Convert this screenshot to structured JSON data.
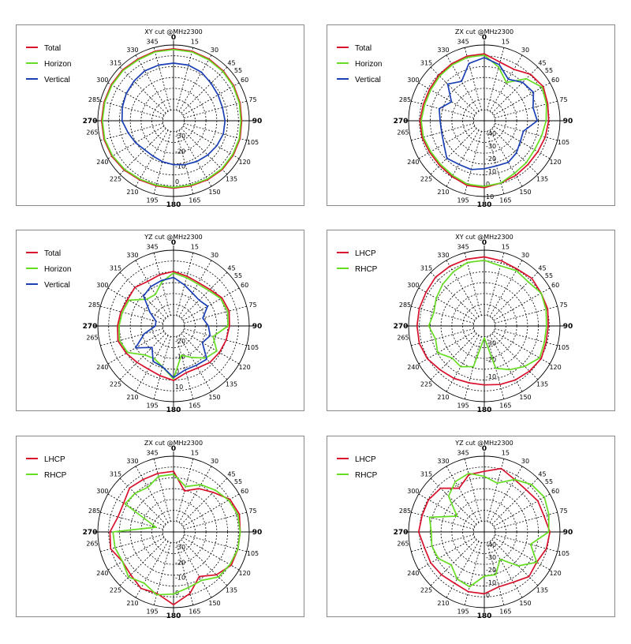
{
  "chart_data": [
    {
      "type": "polar",
      "title": "XY cut @MHz2300",
      "angles": [
        0,
        15,
        30,
        45,
        60,
        75,
        90,
        105,
        120,
        135,
        150,
        165,
        180,
        195,
        210,
        225,
        240,
        255,
        270,
        285,
        300,
        315,
        330,
        345
      ],
      "angle_ticks": [
        "0",
        "15",
        "30",
        "45",
        "55",
        "60",
        "75",
        "90",
        "105",
        "120",
        "135",
        "150",
        "165",
        "180",
        "195",
        "210",
        "225",
        "240",
        "265",
        "270",
        "285",
        "300",
        "315",
        "330",
        "345"
      ],
      "radial_ticks": [
        "-30",
        "-20",
        "-10",
        "0"
      ],
      "rmin": -40,
      "rmax": 10,
      "series": [
        {
          "name": "Total",
          "color": "#d8102b",
          "values": [
            7.5,
            7.5,
            7,
            6.5,
            6,
            5.5,
            5,
            5.5,
            5.5,
            5.5,
            5,
            4.5,
            4.5,
            4.5,
            5,
            6,
            7,
            7.5,
            7.5,
            7.5,
            7.5,
            7.5,
            7,
            7.5
          ]
        },
        {
          "name": "Horizon",
          "color": "#66dd22",
          "values": [
            7,
            7,
            6.5,
            6,
            5.5,
            5,
            4.5,
            5,
            5,
            5,
            4.5,
            4,
            4,
            4,
            4.5,
            5.5,
            6.5,
            7,
            7,
            7,
            7,
            7,
            6.5,
            7
          ]
        },
        {
          "name": "Vertical",
          "color": "#1a3fb5",
          "values": [
            -2,
            -2,
            -3,
            -5,
            -6,
            -6.5,
            -6,
            -6,
            -7,
            -8,
            -9,
            -10,
            -11,
            -12,
            -13,
            -13,
            -11,
            -9,
            -6,
            -5,
            -4,
            -3,
            -2,
            -2
          ]
        }
      ]
    },
    {
      "type": "polar",
      "title": "ZX cut @MHz2300",
      "angles": [
        0,
        15,
        30,
        45,
        60,
        75,
        90,
        105,
        120,
        135,
        150,
        165,
        180,
        195,
        210,
        225,
        240,
        255,
        270,
        285,
        300,
        315,
        330,
        345
      ],
      "angle_ticks": [
        "0",
        "15",
        "30",
        "45",
        "55",
        "60",
        "75",
        "90",
        "105",
        "120",
        "135",
        "150",
        "165",
        "180",
        "195",
        "210",
        "225",
        "240",
        "265",
        "270",
        "285",
        "300",
        "315",
        "330",
        "345"
      ],
      "radial_ticks": [
        "-40",
        "-30",
        "-20",
        "-10",
        "0",
        "10"
      ],
      "rmin": -50,
      "rmax": 10,
      "series": [
        {
          "name": "Total",
          "color": "#d8102b",
          "values": [
            3,
            -2,
            -3,
            2,
            4,
            2,
            1,
            0,
            -1,
            -1,
            0,
            1,
            3,
            3,
            1,
            0,
            0,
            1,
            1,
            0,
            0,
            1,
            2,
            3
          ]
        },
        {
          "name": "Horizon",
          "color": "#66dd22",
          "values": [
            2,
            -6,
            -15,
            -3,
            3,
            1,
            -1,
            -3,
            -4,
            -3,
            -2,
            1,
            2,
            2,
            0,
            -1,
            -1,
            0,
            0,
            -1,
            -1,
            0,
            1,
            2
          ]
        },
        {
          "name": "Vertical",
          "color": "#1a3fb5",
          "values": [
            0,
            -4,
            -12,
            -7,
            -5,
            -10,
            -8,
            -18,
            -17,
            -14,
            -12,
            -13,
            -12,
            -10,
            -10,
            -8,
            -13,
            -15,
            -15,
            -13,
            -20,
            -9,
            -14,
            -3
          ]
        }
      ]
    },
    {
      "type": "polar",
      "title": "YZ cut @MHz2300",
      "angles": [
        0,
        15,
        30,
        45,
        60,
        75,
        90,
        105,
        120,
        135,
        150,
        165,
        180,
        195,
        210,
        225,
        240,
        255,
        270,
        285,
        300,
        315,
        330,
        345
      ],
      "angle_ticks": [
        "0",
        "15",
        "30",
        "45",
        "55",
        "60",
        "75",
        "90",
        "105",
        "120",
        "135",
        "150",
        "165",
        "180",
        "195",
        "210",
        "225",
        "240",
        "265",
        "270",
        "285",
        "300",
        "315",
        "330",
        "345"
      ],
      "radial_ticks": [
        "-20",
        "-10",
        "0",
        "10"
      ],
      "rmin": -30,
      "rmax": 20,
      "series": [
        {
          "name": "Total",
          "color": "#d8102b",
          "values": [
            6,
            4,
            3,
            4,
            7,
            8,
            7,
            6,
            5,
            4,
            2,
            2,
            6,
            4,
            3,
            4,
            6,
            8,
            7,
            6,
            5,
            6,
            4,
            5
          ]
        },
        {
          "name": "Horizon",
          "color": "#66dd22",
          "values": [
            5,
            3,
            2,
            3,
            6,
            7,
            6,
            -3,
            3,
            0,
            -6,
            -10,
            5,
            -2,
            -5,
            -3,
            5,
            7,
            6,
            5,
            4,
            -5,
            -6,
            0
          ]
        },
        {
          "name": "Vertical",
          "color": "#1a3fb5",
          "values": [
            2,
            -2,
            -5,
            -6,
            -4,
            -10,
            -7,
            -5,
            -8,
            1,
            0,
            0,
            4,
            -2,
            -3,
            -10,
            -1,
            -10,
            -18,
            -18,
            -12,
            -2,
            0,
            1
          ]
        }
      ]
    },
    {
      "type": "polar",
      "title": "XY cut @MHz2300",
      "angles": [
        0,
        15,
        30,
        45,
        60,
        75,
        90,
        105,
        120,
        135,
        150,
        165,
        180,
        195,
        210,
        225,
        240,
        255,
        270,
        285,
        300,
        315,
        330,
        345
      ],
      "angle_ticks": [
        "0",
        "15",
        "30",
        "45",
        "55",
        "60",
        "75",
        "90",
        "105",
        "120",
        "135",
        "150",
        "165",
        "180",
        "195",
        "210",
        "225",
        "240",
        "265",
        "270",
        "285",
        "300",
        "315",
        "330",
        "345"
      ],
      "radial_ticks": [
        "-30",
        "-20",
        "-10"
      ],
      "rmin": -40,
      "rmax": 5,
      "series": [
        {
          "name": "LHCP",
          "color": "#d8102b",
          "values": [
            1,
            0,
            -1,
            0,
            -1,
            -1,
            -2,
            -2,
            -1,
            -2,
            -3,
            -4,
            -5,
            -5,
            -4,
            -3,
            -1,
            0,
            0,
            0,
            0,
            1,
            1,
            1
          ]
        },
        {
          "name": "RHCP",
          "color": "#66dd22",
          "values": [
            -1,
            -3,
            -2,
            -3,
            -1,
            -2,
            -3,
            -3,
            -2,
            -6,
            -10,
            -14,
            -33,
            -15,
            -12,
            -13,
            -8,
            -10,
            -7,
            -9,
            -7,
            -5,
            -3,
            -1
          ]
        }
      ]
    },
    {
      "type": "polar",
      "title": "ZX cut @MHz2300",
      "angles": [
        0,
        15,
        30,
        45,
        60,
        75,
        90,
        105,
        120,
        135,
        150,
        165,
        180,
        195,
        210,
        225,
        240,
        255,
        270,
        285,
        300,
        315,
        330,
        345
      ],
      "angle_ticks": [
        "0",
        "15",
        "30",
        "45",
        "55",
        "60",
        "75",
        "90",
        "105",
        "120",
        "135",
        "150",
        "165",
        "180",
        "195",
        "210",
        "225",
        "240",
        "265",
        "270",
        "285",
        "300",
        "315",
        "330",
        "345"
      ],
      "radial_ticks": [
        "-30",
        "-20",
        "-10",
        "0"
      ],
      "rmin": -40,
      "rmax": 10,
      "series": [
        {
          "name": "LHCP",
          "color": "#d8102b",
          "values": [
            0,
            -12,
            -7,
            -3,
            3,
            5,
            4,
            4,
            4,
            0,
            -6,
            2,
            8,
            2,
            3,
            0,
            -1,
            3,
            2,
            -2,
            -2,
            1,
            0,
            0
          ]
        },
        {
          "name": "RHCP",
          "color": "#66dd22",
          "values": [
            -2,
            -9,
            -4,
            -1,
            2,
            4,
            4,
            4,
            3,
            2,
            -3,
            -2,
            1,
            3,
            -1,
            2,
            -1,
            0,
            0,
            -28,
            -3,
            -4,
            -6,
            -2
          ]
        }
      ]
    },
    {
      "type": "polar",
      "title": "YZ cut @MHz2300",
      "angles": [
        0,
        15,
        30,
        45,
        60,
        75,
        90,
        105,
        120,
        135,
        150,
        165,
        180,
        195,
        210,
        225,
        240,
        255,
        270,
        285,
        300,
        315,
        330,
        345
      ],
      "angle_ticks": [
        "0",
        "15",
        "30",
        "45",
        "55",
        "60",
        "75",
        "90",
        "105",
        "120",
        "135",
        "150",
        "165",
        "180",
        "195",
        "210",
        "225",
        "240",
        "265",
        "270",
        "285",
        "300",
        "315",
        "330",
        "345"
      ],
      "radial_ticks": [
        "-40",
        "-30",
        "-20",
        "-10",
        "0"
      ],
      "rmin": -50,
      "rmax": 10,
      "series": [
        {
          "name": "LHCP",
          "color": "#d8102b",
          "values": [
            -2,
            2,
            -2,
            -3,
            -1,
            -1,
            2,
            1,
            -2,
            0,
            -4,
            -5,
            -1,
            -1,
            -3,
            -2,
            -1,
            -1,
            2,
            1,
            1,
            -1,
            -10,
            -3
          ]
        },
        {
          "name": "RHCP",
          "color": "#66dd22",
          "values": [
            -6,
            -10,
            -2,
            3,
            5,
            3,
            1,
            -12,
            -2,
            -12,
            -25,
            -15,
            -15,
            -5,
            -7,
            -13,
            -8,
            -7,
            -8,
            -5,
            -25,
            -10,
            -4,
            -2
          ]
        }
      ]
    }
  ]
}
